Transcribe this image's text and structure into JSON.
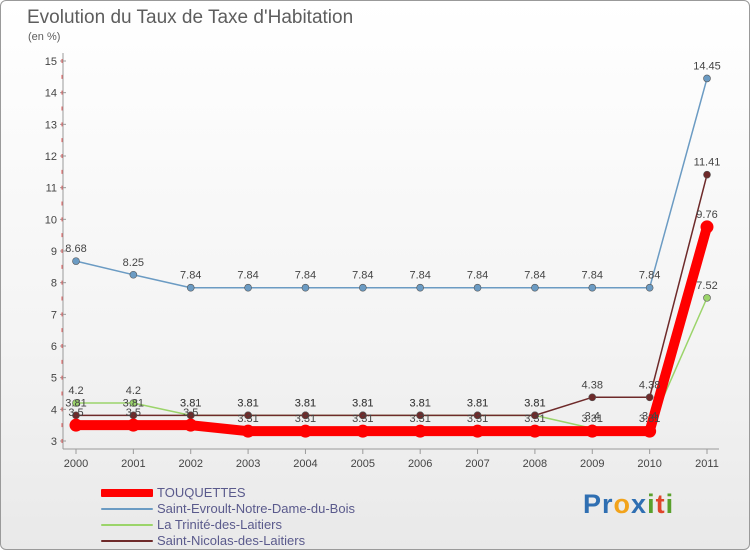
{
  "title": "Evolution du Taux de Taxe d'Habitation",
  "unit_label": "(en %)",
  "logo": {
    "text": "Proxiti",
    "letters": [
      {
        "char": "P",
        "color": "#2f6fb2"
      },
      {
        "char": "r",
        "color": "#2f6fb2"
      },
      {
        "char": "o",
        "color": "#f2a31b"
      },
      {
        "char": "x",
        "color": "#2f6fb2"
      },
      {
        "char": "i",
        "color": "#5aa02c"
      },
      {
        "char": "t",
        "color": "#e0452b"
      },
      {
        "char": "i",
        "color": "#5aa02c"
      }
    ]
  },
  "chart_data": {
    "type": "line",
    "x": [
      "2000",
      "2001",
      "2002",
      "2003",
      "2004",
      "2005",
      "2006",
      "2007",
      "2008",
      "2009",
      "2010",
      "2011"
    ],
    "ylim": [
      3,
      15
    ],
    "yticks": [
      3,
      4,
      5,
      6,
      7,
      8,
      9,
      10,
      11,
      12,
      13,
      14,
      15
    ],
    "grid": false,
    "legend_position": "bottom-left",
    "series": [
      {
        "name": "Saint-Evroult-Notre-Dame-du-Bois",
        "color": "#6b9bc3",
        "values": [
          8.68,
          8.25,
          7.84,
          7.84,
          7.84,
          7.84,
          7.84,
          7.84,
          7.84,
          7.84,
          7.84,
          14.45
        ],
        "labels": [
          "8.68",
          "8.25",
          "7.84",
          "7.84",
          "7.84",
          "7.84",
          "7.84",
          "7.84",
          "7.84",
          "7.84",
          "7.84",
          "14.45"
        ]
      },
      {
        "name": "La Trinité-des-Laitiers",
        "color": "#9bd46a",
        "values": [
          4.2,
          4.2,
          3.81,
          3.81,
          3.81,
          3.81,
          3.81,
          3.81,
          3.81,
          3.4,
          3.4,
          7.52
        ],
        "labels": [
          "4.2",
          "4.2",
          "3.81",
          "3.81",
          "3.81",
          "3.81",
          "3.81",
          "3.81",
          "3.81",
          "3.4",
          "3.4",
          "7.52"
        ]
      },
      {
        "name": "Saint-Nicolas-des-Laitiers",
        "color": "#6e2a2a",
        "values": [
          3.81,
          3.81,
          3.81,
          3.81,
          3.81,
          3.81,
          3.81,
          3.81,
          3.81,
          4.38,
          4.38,
          11.41
        ],
        "labels": [
          "3.81",
          "3.81",
          "3.81",
          "3.81",
          "3.81",
          "3.81",
          "3.81",
          "3.81",
          "3.81",
          "4.38",
          "4.38",
          "11.41"
        ]
      },
      {
        "name": "TOUQUETTES",
        "color": "#ff0000",
        "values": [
          3.5,
          3.5,
          3.5,
          3.31,
          3.31,
          3.31,
          3.31,
          3.31,
          3.31,
          3.31,
          3.31,
          9.76
        ],
        "labels": [
          "3.5",
          "3.5",
          "3.5",
          "3.31",
          "3.31",
          "3.31",
          "3.31",
          "3.31",
          "3.31",
          "3.31",
          "3.31",
          "9.76"
        ]
      }
    ]
  }
}
